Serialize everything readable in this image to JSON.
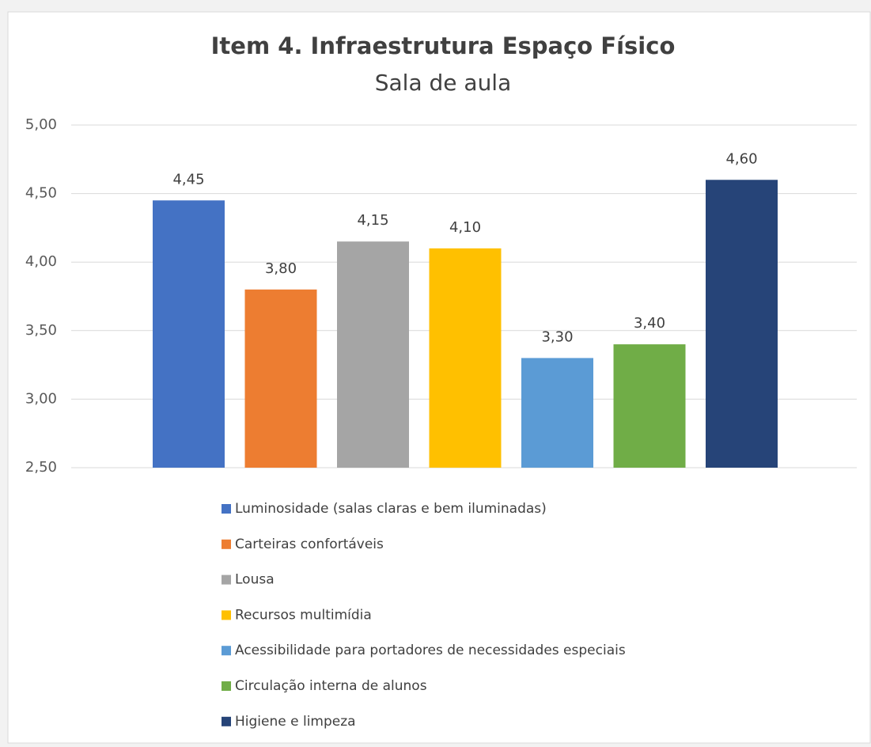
{
  "chart_data": {
    "type": "bar",
    "title": "Item 4. Infraestrutura Espaço Físico",
    "subtitle": "Sala de aula",
    "ylim": [
      2.5,
      5
    ],
    "yticks": [
      {
        "value": 2.5,
        "label": "2,50"
      },
      {
        "value": 3,
        "label": "3,00"
      },
      {
        "value": 3.5,
        "label": "3,50"
      },
      {
        "value": 4,
        "label": "4,00"
      },
      {
        "value": 4.5,
        "label": "4,50"
      },
      {
        "value": 5,
        "label": "5,00"
      }
    ],
    "grid": true,
    "legend": "bottom",
    "series": [
      {
        "name": "Luminosidade (salas claras e bem iluminadas)",
        "color": "#4472c4",
        "values": [
          4.45
        ],
        "value_labels": [
          "4,45"
        ]
      },
      {
        "name": "Carteiras confortáveis",
        "color": "#ed7d31",
        "values": [
          3.8
        ],
        "value_labels": [
          "3,80"
        ]
      },
      {
        "name": "Lousa",
        "color": "#a5a5a5",
        "values": [
          4.15
        ],
        "value_labels": [
          "4,15"
        ]
      },
      {
        "name": "Recursos multimídia",
        "color": "#ffc000",
        "values": [
          4.1
        ],
        "value_labels": [
          "4,10"
        ]
      },
      {
        "name": "Acessibilidade para portadores de necessidades especiais",
        "color": "#5b9bd5",
        "values": [
          3.3
        ],
        "value_labels": [
          "3,30"
        ]
      },
      {
        "name": "Circulação interna de alunos",
        "color": "#70ad47",
        "values": [
          3.4
        ],
        "value_labels": [
          "3,40"
        ]
      },
      {
        "name": "Higiene e limpeza",
        "color": "#264478",
        "values": [
          4.6
        ],
        "value_labels": [
          "4,60"
        ]
      }
    ]
  }
}
